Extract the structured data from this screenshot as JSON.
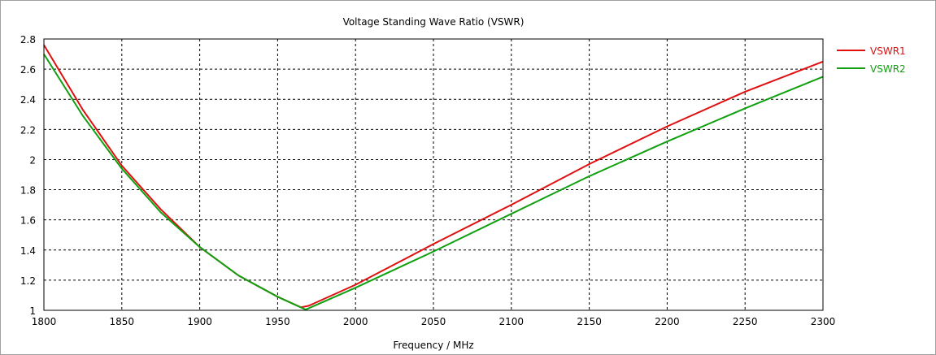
{
  "chart_data": {
    "type": "line",
    "title": "Voltage Standing Wave Ratio (VSWR)",
    "xlabel": "Frequency / MHz",
    "ylabel": "",
    "xlim": [
      1800,
      2300
    ],
    "ylim": [
      1,
      2.8
    ],
    "xticks": [
      1800,
      1850,
      1900,
      1950,
      2000,
      2050,
      2100,
      2150,
      2200,
      2250,
      2300
    ],
    "yticks": [
      1,
      1.2,
      1.4,
      1.6,
      1.8,
      2,
      2.2,
      2.4,
      2.6,
      2.8
    ],
    "grid": true,
    "legend": "right",
    "series": [
      {
        "name": "VSWR1",
        "color": "#e01010",
        "x": [
          1800,
          1825,
          1850,
          1875,
          1900,
          1925,
          1950,
          1965,
          1970,
          2000,
          2050,
          2100,
          2150,
          2200,
          2250,
          2300
        ],
        "y": [
          2.76,
          2.33,
          1.96,
          1.67,
          1.42,
          1.23,
          1.09,
          1.02,
          1.03,
          1.17,
          1.44,
          1.7,
          1.97,
          2.22,
          2.45,
          2.65
        ]
      },
      {
        "name": "VSWR2",
        "color": "#10a010",
        "x": [
          1800,
          1825,
          1850,
          1875,
          1900,
          1925,
          1950,
          1968,
          2000,
          2050,
          2100,
          2150,
          2200,
          2250,
          2300
        ],
        "y": [
          2.7,
          2.29,
          1.94,
          1.65,
          1.42,
          1.23,
          1.09,
          1.005,
          1.15,
          1.39,
          1.64,
          1.89,
          2.12,
          2.34,
          2.55
        ]
      }
    ]
  }
}
